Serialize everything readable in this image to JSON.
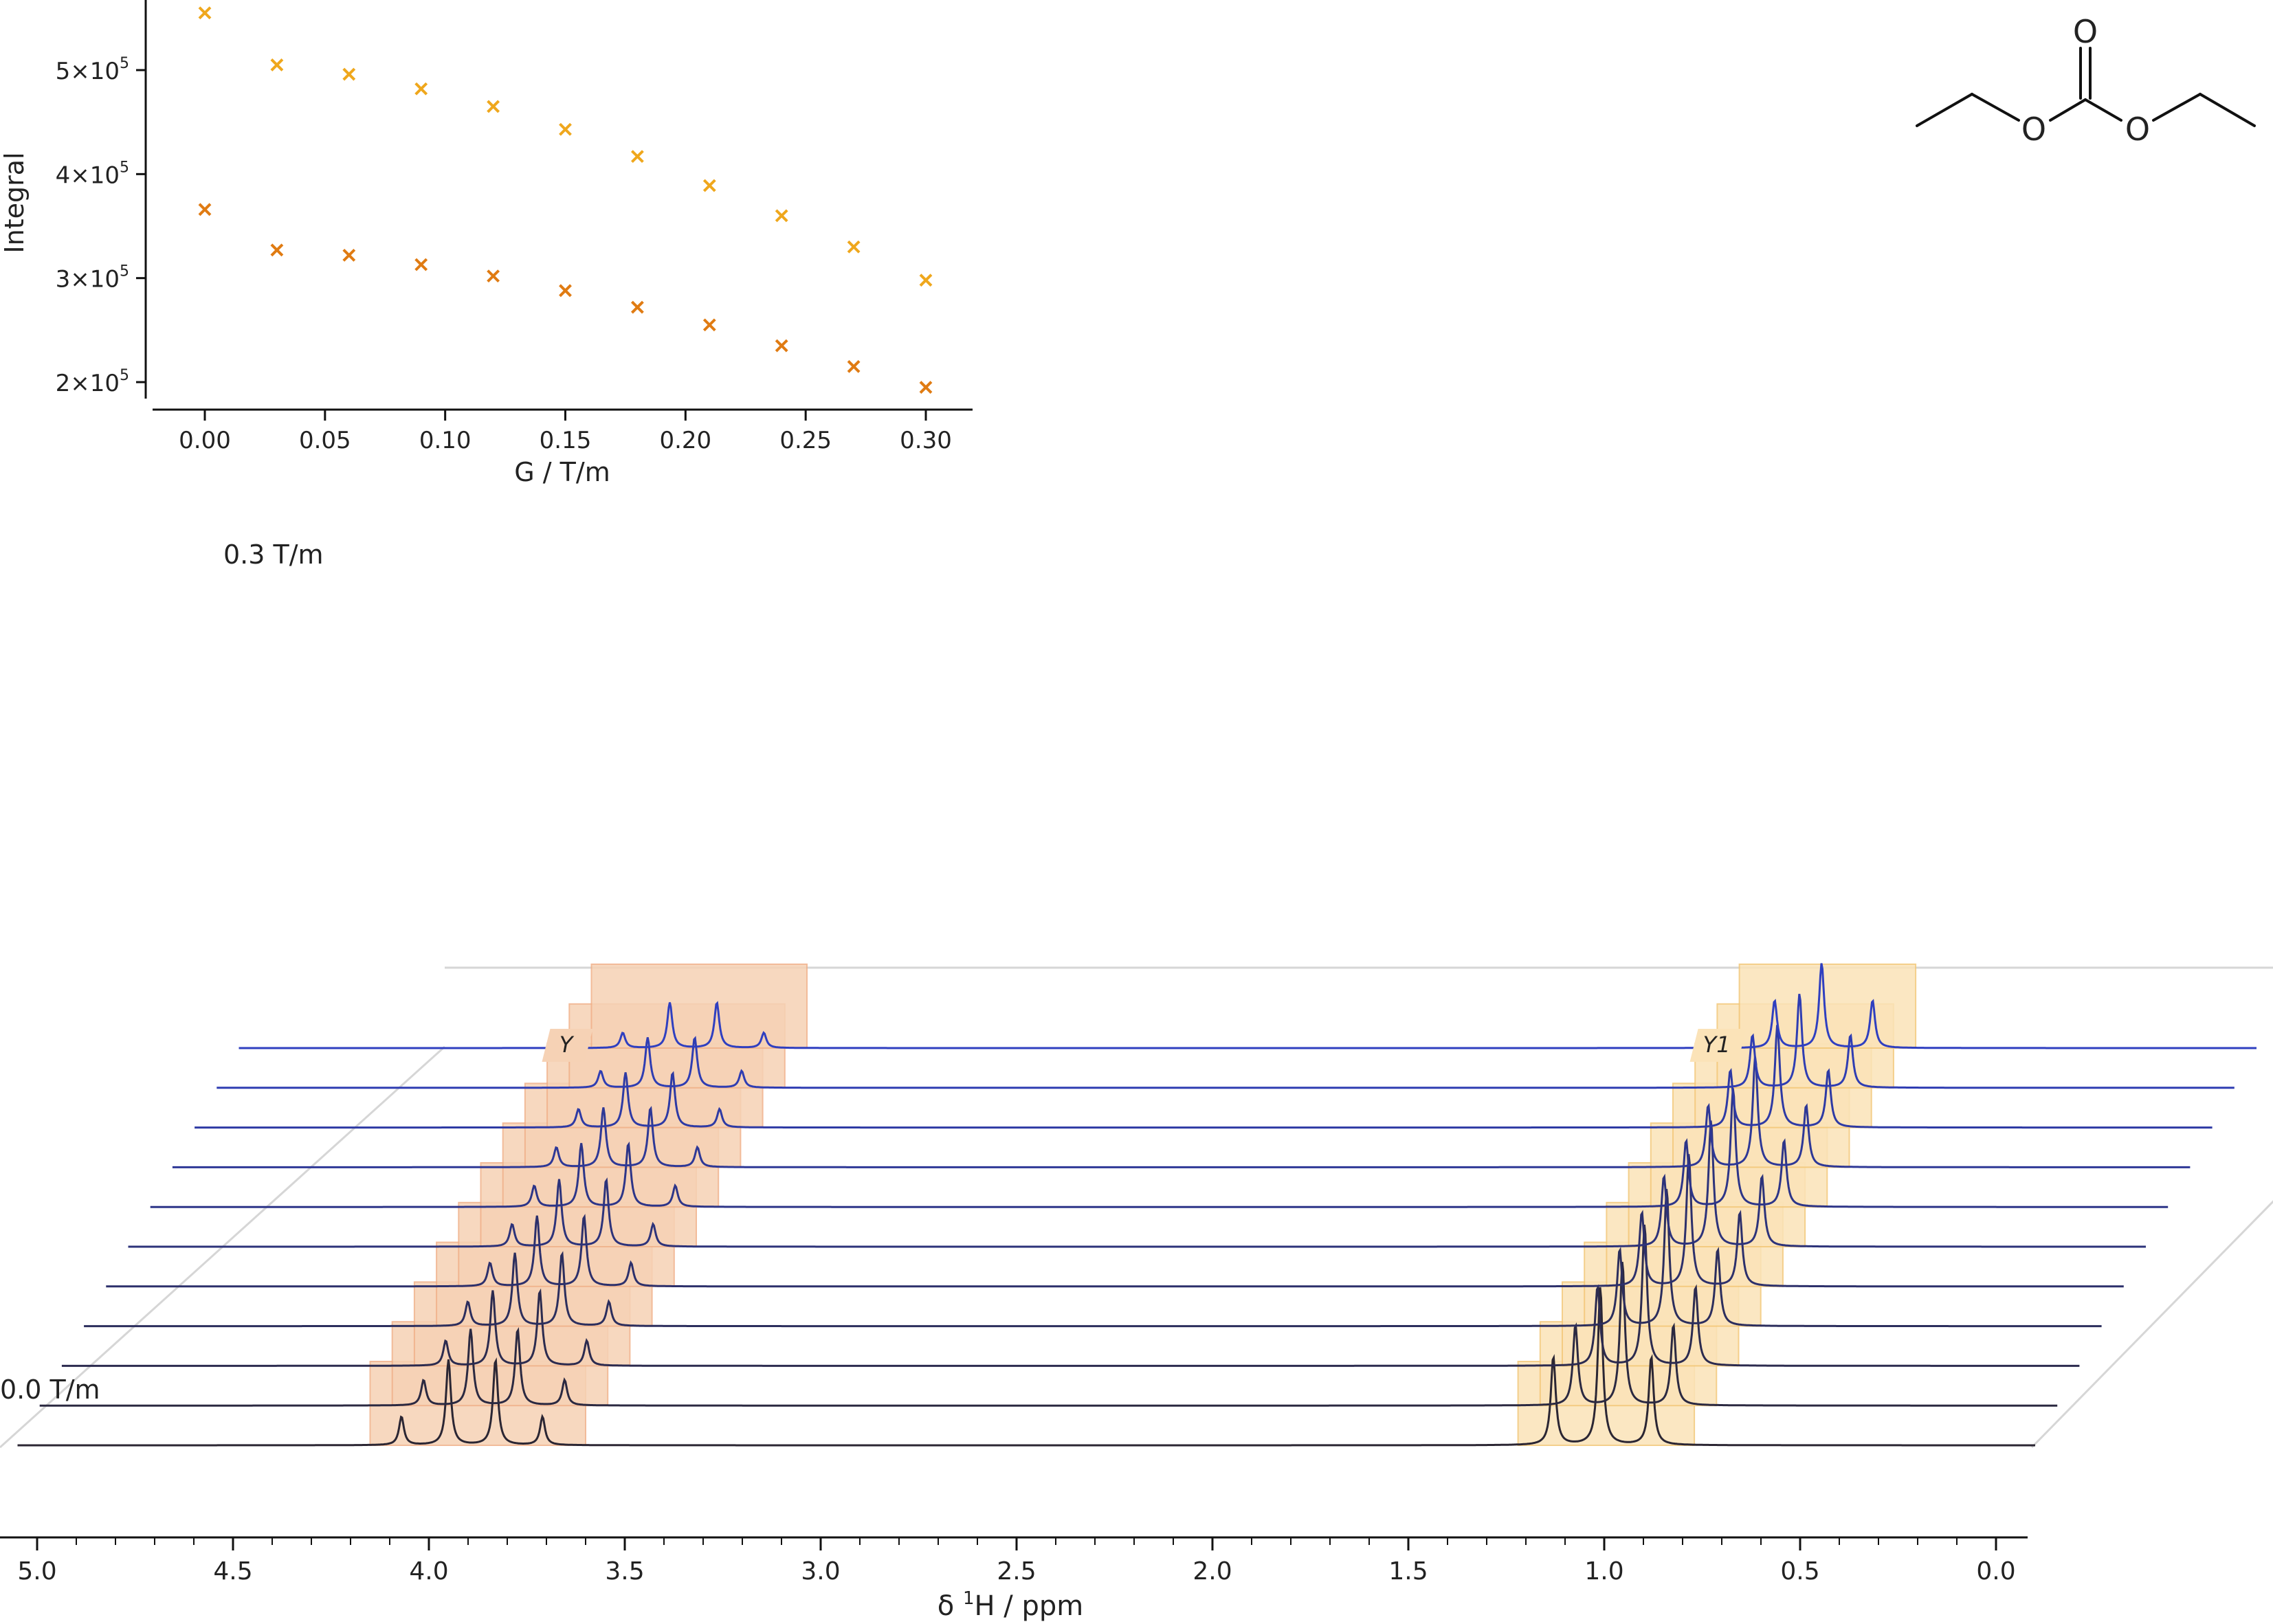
{
  "colors": {
    "axis": "#111111",
    "marker_upper": "#EFA71C",
    "marker_lower": "#E07B12",
    "trace_first": "#2b2633",
    "trace_last": "#2F3FC0",
    "shade_left": "#F6D2B5",
    "shade_left_edge": "#F0B088",
    "shade_right": "#FBE3B8",
    "shade_right_edge": "#F3C777",
    "frame": "#D6D6D6",
    "label_first": "#2b2633",
    "label_last": "#2F3FC0"
  },
  "chart_data": [
    {
      "type": "scatter",
      "xlabel": "G / T/m",
      "ylabel": "Integral",
      "x_ticks": [
        "0.00",
        "0.05",
        "0.10",
        "0.15",
        "0.20",
        "0.25",
        "0.30"
      ],
      "y_ticks": [
        {
          "value": 200000,
          "mantissa": "2×10",
          "exp": "5"
        },
        {
          "value": 300000,
          "mantissa": "3×10",
          "exp": "5"
        },
        {
          "value": 400000,
          "mantissa": "4×10",
          "exp": "5"
        },
        {
          "value": 500000,
          "mantissa": "5×10",
          "exp": "5"
        }
      ],
      "xlim": [
        -0.02,
        0.32
      ],
      "ylim": [
        185000,
        565000
      ],
      "marker": "x",
      "series": [
        {
          "x": [
            0.0,
            0.03,
            0.06,
            0.09,
            0.12,
            0.15,
            0.18,
            0.21,
            0.24,
            0.27,
            0.3
          ],
          "values": [
            555000,
            505000,
            496000,
            482000,
            465000,
            443000,
            417000,
            389000,
            360000,
            330000,
            298000
          ]
        },
        {
          "x": [
            0.0,
            0.03,
            0.06,
            0.09,
            0.12,
            0.15,
            0.18,
            0.21,
            0.24,
            0.27,
            0.3
          ],
          "values": [
            366000,
            327000,
            322000,
            313000,
            302000,
            288000,
            272000,
            255000,
            235000,
            215000,
            195000
          ]
        }
      ]
    },
    {
      "type": "line",
      "xlabel_prefix": "δ ",
      "xlabel_sup": "1",
      "xlabel_suffix": "H / ppm",
      "xlim": [
        5.0,
        0.0
      ],
      "x_reversed": true,
      "x_ticks": [
        "5.0",
        "4.5",
        "4.0",
        "3.5",
        "3.0",
        "2.5",
        "2.0",
        "1.5",
        "1.0",
        "0.5",
        "0.0"
      ],
      "x_tick_values": [
        5.0,
        4.5,
        4.0,
        3.5,
        3.0,
        2.5,
        2.0,
        1.5,
        1.0,
        0.5,
        0.0
      ],
      "trace_count": 11,
      "trace_labels": {
        "first": "0.0 T/m",
        "last": "0.3 T/m"
      },
      "peak_groups": [
        {
          "label": "Y",
          "range_ppm": [
            4.15,
            3.6
          ],
          "shade": "left",
          "peaks_ppm": [
            4.07,
            3.95,
            3.83,
            3.71
          ],
          "rel_heights": [
            0.18,
            0.54,
            0.54,
            0.18
          ]
        },
        {
          "label": "Y1",
          "range_ppm": [
            1.22,
            0.77
          ],
          "shade": "right",
          "peaks_ppm": [
            1.13,
            1.01,
            0.88
          ],
          "rel_heights": [
            0.56,
            1.0,
            0.56
          ]
        }
      ]
    }
  ],
  "structure": {
    "atom_labels": {
      "carbonyl_o": "O",
      "ester_o_left": "O",
      "ester_o_right": "O"
    }
  }
}
